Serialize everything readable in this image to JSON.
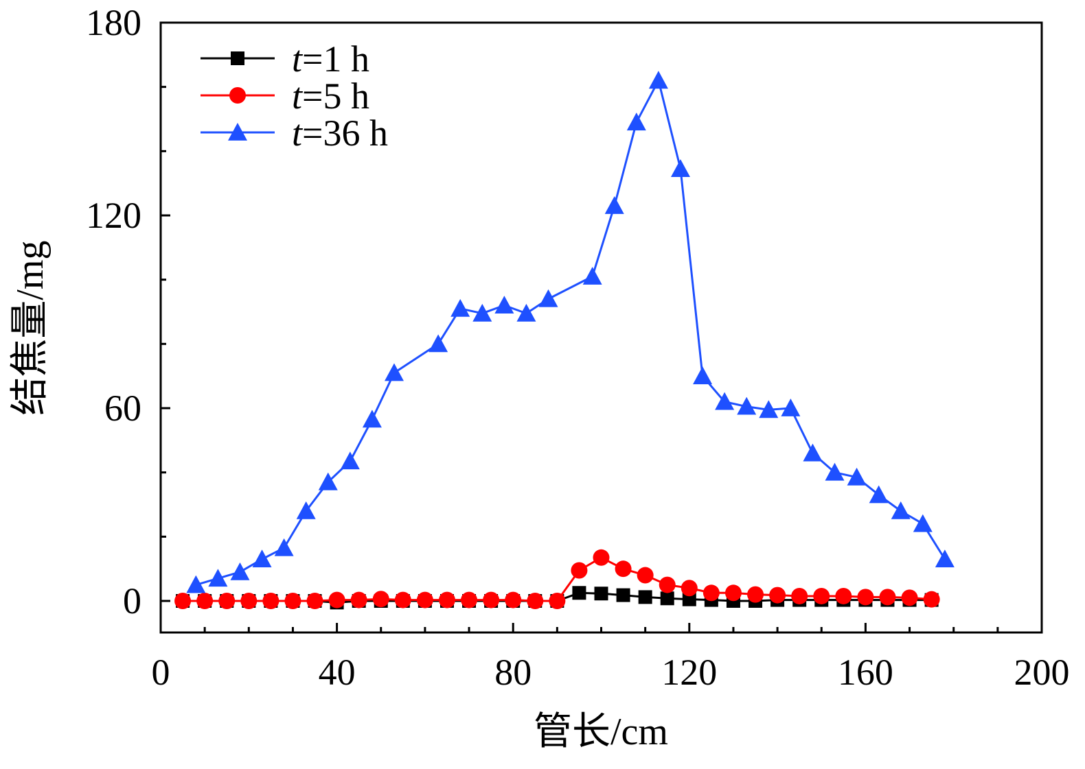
{
  "chart_data": {
    "type": "line",
    "title": "",
    "xlabel": "管长/cm",
    "ylabel": "结焦量/mg",
    "xlim": [
      0,
      200
    ],
    "ylim": [
      -10,
      180
    ],
    "xticks": [
      0,
      40,
      80,
      120,
      160,
      200
    ],
    "yticks": [
      0,
      60,
      120,
      180
    ],
    "xtick_labels": [
      "0",
      "40",
      "80",
      "120",
      "160",
      "200"
    ],
    "ytick_labels": [
      "0",
      "60",
      "120",
      "180"
    ],
    "legend_position": "top-left",
    "series": [
      {
        "name": "t=1 h",
        "legend_prefix": "t",
        "legend_suffix": "=1 h",
        "color": "#000000",
        "marker": "square",
        "x": [
          5,
          10,
          15,
          20,
          25,
          30,
          35,
          40,
          45,
          50,
          55,
          60,
          65,
          70,
          75,
          80,
          85,
          90,
          95,
          100,
          105,
          110,
          115,
          120,
          125,
          130,
          135,
          140,
          145,
          150,
          155,
          160,
          165,
          170,
          175
        ],
        "y": [
          0,
          0,
          0,
          0,
          0,
          0,
          0,
          -0.5,
          0,
          0,
          0,
          0,
          0,
          0,
          0,
          0,
          0,
          0,
          2.5,
          2.3,
          1.8,
          1.2,
          0.8,
          0.5,
          0.3,
          0,
          0,
          0.3,
          0.3,
          0.3,
          0.3,
          0.3,
          0.3,
          0.3,
          0.3
        ]
      },
      {
        "name": "t=5 h",
        "legend_prefix": "t",
        "legend_suffix": "=5 h",
        "color": "#ff0000",
        "marker": "circle",
        "x": [
          5,
          10,
          15,
          20,
          25,
          30,
          35,
          40,
          45,
          50,
          55,
          60,
          65,
          70,
          75,
          80,
          85,
          90,
          95,
          100,
          105,
          110,
          115,
          120,
          125,
          130,
          135,
          140,
          145,
          150,
          155,
          160,
          165,
          170,
          175
        ],
        "y": [
          0,
          0,
          0,
          0,
          0,
          0,
          0,
          0.3,
          0.3,
          0.6,
          0.3,
          0.3,
          0.3,
          0.3,
          0.3,
          0.3,
          0,
          0,
          9.5,
          13.5,
          10,
          8,
          5,
          4,
          2.5,
          2.5,
          2,
          1.8,
          1.5,
          1.5,
          1.5,
          1.2,
          1.2,
          1,
          0.5
        ]
      },
      {
        "name": "t=36 h",
        "legend_prefix": "t",
        "legend_suffix": "=36 h",
        "color": "#1e50ff",
        "marker": "triangle",
        "x": [
          8,
          13,
          18,
          23,
          28,
          33,
          38,
          43,
          48,
          53,
          63,
          68,
          73,
          78,
          83,
          88,
          98,
          103,
          108,
          113,
          118,
          123,
          128,
          133,
          138,
          143,
          148,
          153,
          158,
          163,
          168,
          173,
          178
        ],
        "y": [
          5,
          7,
          9,
          13,
          16.5,
          28,
          37,
          43.5,
          56.5,
          71,
          80,
          91,
          89.5,
          92,
          89.5,
          94,
          101,
          123,
          149,
          162,
          134.5,
          70,
          62,
          60.5,
          59.5,
          60,
          46,
          40,
          38.5,
          33,
          28,
          24,
          13
        ]
      }
    ]
  }
}
